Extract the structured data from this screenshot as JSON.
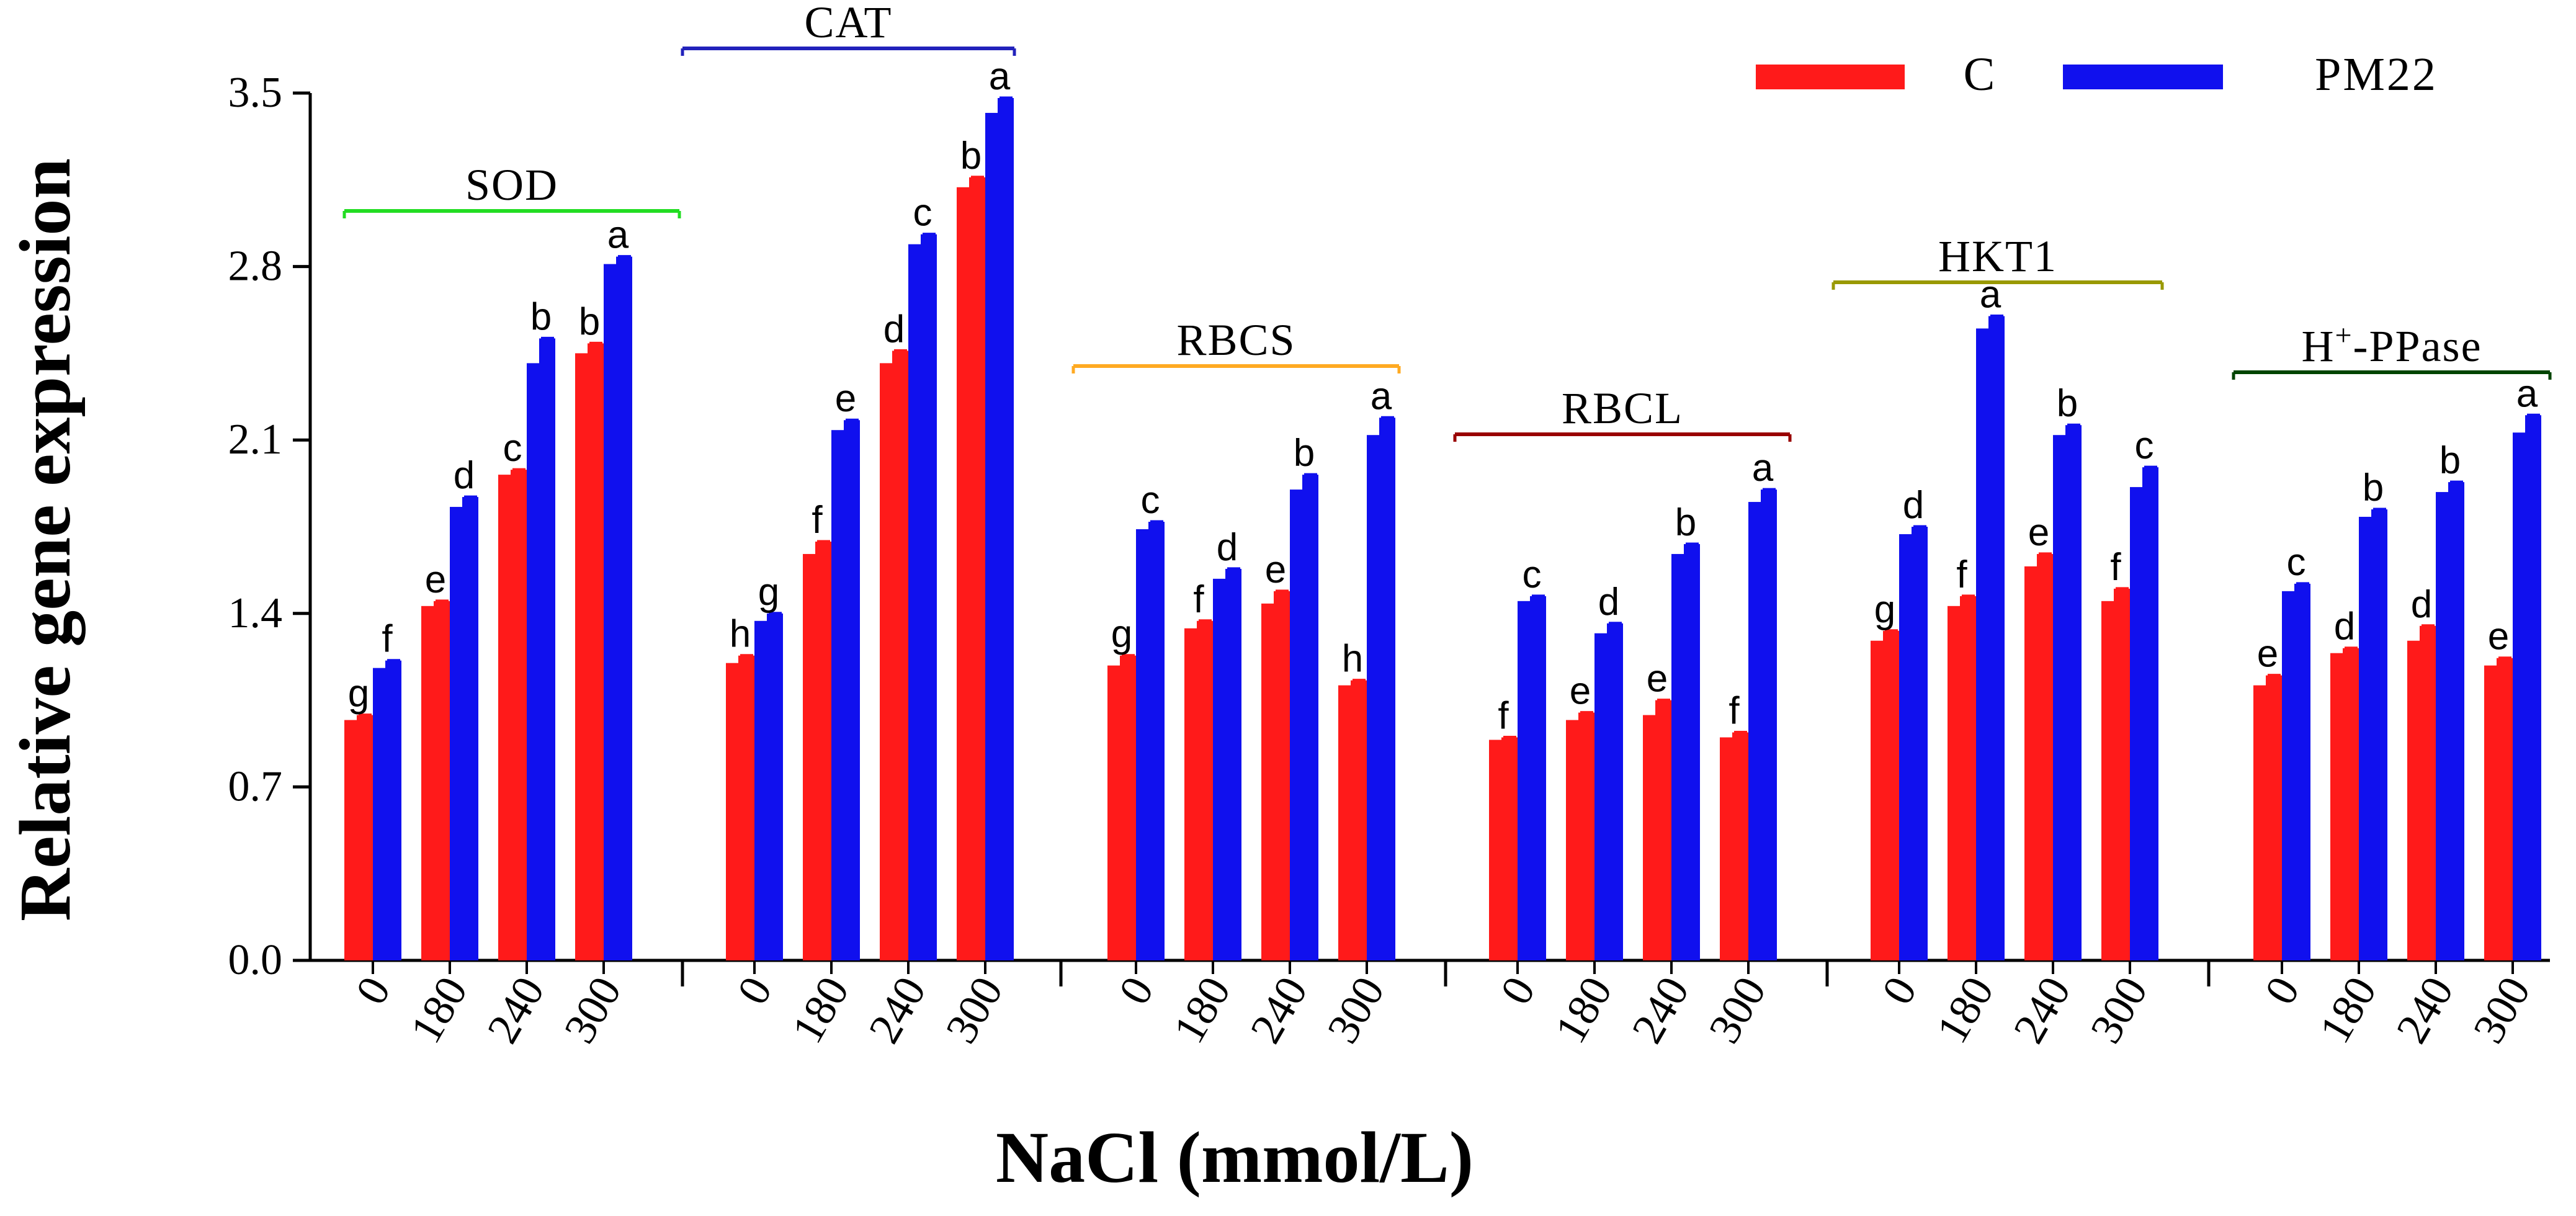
{
  "chart_data": {
    "type": "bar",
    "ylabel": "Relative gene expression",
    "xlabel": "NaCl (mmol/L)",
    "ylim": [
      0,
      3.5
    ],
    "yticks": [
      "0.0",
      "0.7",
      "1.4",
      "2.1",
      "2.8",
      "3.5"
    ],
    "ytick_values": [
      0,
      0.7,
      1.4,
      2.1,
      2.8,
      3.5
    ],
    "categories": [
      "0",
      "180",
      "240",
      "300"
    ],
    "legend": {
      "position": "top-right",
      "entries": [
        {
          "name": "C",
          "color": "#ff1a1a"
        },
        {
          "name": "PM22",
          "color": "#1010ee"
        }
      ]
    },
    "groups": [
      {
        "gene": "SOD",
        "bracket_color": "#22dd22",
        "C": {
          "values": [
            0.97,
            1.43,
            1.96,
            2.45
          ],
          "errors": [
            0.02,
            0.02,
            0.02,
            0.04
          ],
          "letters": [
            "g",
            "e",
            "c",
            "b"
          ]
        },
        "PM22": {
          "values": [
            1.18,
            1.83,
            2.41,
            2.81
          ],
          "errors": [
            0.03,
            0.04,
            0.1,
            0.03
          ],
          "letters": [
            "f",
            "d",
            "b",
            "a"
          ]
        }
      },
      {
        "gene": "CAT",
        "bracket_color": "#2222bb",
        "C": {
          "values": [
            1.2,
            1.64,
            2.41,
            3.12
          ],
          "errors": [
            0.03,
            0.05,
            0.05,
            0.04
          ],
          "letters": [
            "h",
            "f",
            "d",
            "b"
          ]
        },
        "PM22": {
          "values": [
            1.37,
            2.14,
            2.89,
            3.42
          ],
          "errors": [
            0.03,
            0.04,
            0.04,
            0.06
          ],
          "letters": [
            "g",
            "e",
            "c",
            "a"
          ]
        }
      },
      {
        "gene": "RBCS",
        "bracket_color": "#ffaa22",
        "C": {
          "values": [
            1.19,
            1.34,
            1.44,
            1.11
          ],
          "errors": [
            0.04,
            0.03,
            0.05,
            0.02
          ],
          "letters": [
            "g",
            "f",
            "e",
            "h"
          ]
        },
        "PM22": {
          "values": [
            1.74,
            1.54,
            1.9,
            2.12
          ],
          "errors": [
            0.03,
            0.04,
            0.06,
            0.07
          ],
          "letters": [
            "c",
            "d",
            "b",
            "a"
          ]
        }
      },
      {
        "gene": "RBCL",
        "bracket_color": "#990000",
        "C": {
          "values": [
            0.89,
            0.97,
            0.99,
            0.9
          ],
          "errors": [
            0.01,
            0.03,
            0.06,
            0.02
          ],
          "letters": [
            "f",
            "e",
            "e",
            "f"
          ]
        },
        "PM22": {
          "values": [
            1.45,
            1.32,
            1.64,
            1.85
          ],
          "errors": [
            0.02,
            0.04,
            0.04,
            0.05
          ],
          "letters": [
            "c",
            "d",
            "b",
            "a"
          ]
        }
      },
      {
        "gene": "HKT1",
        "bracket_color": "#999900",
        "C": {
          "values": [
            1.29,
            1.43,
            1.59,
            1.45
          ],
          "errors": [
            0.04,
            0.04,
            0.05,
            0.05
          ],
          "letters": [
            "g",
            "f",
            "e",
            "f"
          ]
        },
        "PM22": {
          "values": [
            1.72,
            2.55,
            2.12,
            1.91
          ],
          "errors": [
            0.03,
            0.05,
            0.04,
            0.08
          ],
          "letters": [
            "d",
            "a",
            "b",
            "c"
          ]
        }
      },
      {
        "gene": "H+-PPase",
        "gene_base": "H",
        "gene_sup": "+",
        "gene_rest": "-PPase",
        "bracket_color": "#004400",
        "C": {
          "values": [
            1.11,
            1.24,
            1.29,
            1.19
          ],
          "errors": [
            0.04,
            0.02,
            0.06,
            0.03
          ],
          "letters": [
            "e",
            "d",
            "d",
            "e"
          ]
        },
        "PM22": {
          "values": [
            1.49,
            1.79,
            1.89,
            2.13
          ],
          "errors": [
            0.03,
            0.03,
            0.04,
            0.07
          ],
          "letters": [
            "c",
            "b",
            "b",
            "a"
          ]
        }
      }
    ]
  }
}
